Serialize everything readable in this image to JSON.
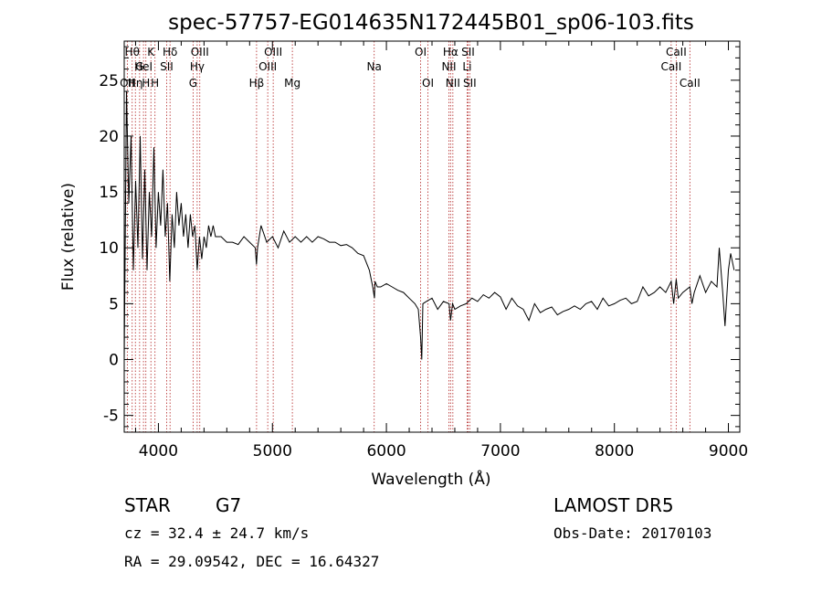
{
  "chart_data": {
    "type": "line",
    "title": "spec-57757-EG014635N172445B01_sp06-103.fits",
    "xlabel": "Wavelength (Å)",
    "ylabel": "Flux (relative)",
    "xlim": [
      3700,
      9100
    ],
    "ylim": [
      -6.5,
      28.5
    ],
    "xticks": [
      4000,
      5000,
      6000,
      7000,
      8000,
      9000
    ],
    "yticks": [
      -5,
      0,
      5,
      10,
      15,
      20,
      25
    ],
    "grid": false,
    "series": [
      {
        "x": [
          3700,
          3720,
          3740,
          3760,
          3780,
          3800,
          3820,
          3840,
          3860,
          3880,
          3900,
          3920,
          3940,
          3960,
          3980,
          4000,
          4020,
          4040,
          4060,
          4080,
          4100,
          4120,
          4140,
          4160,
          4180,
          4200,
          4220,
          4240,
          4260,
          4280,
          4300,
          4320,
          4340,
          4360,
          4380,
          4400,
          4420,
          4440,
          4460,
          4480,
          4500,
          4550,
          4600,
          4650,
          4700,
          4750,
          4800,
          4850,
          4860,
          4870,
          4900,
          4950,
          5000,
          5050,
          5100,
          5150,
          5200,
          5250,
          5300,
          5350,
          5400,
          5450,
          5500,
          5550,
          5600,
          5650,
          5700,
          5750,
          5800,
          5850,
          5880,
          5895,
          5900,
          5920,
          5950,
          6000,
          6050,
          6100,
          6150,
          6200,
          6250,
          6280,
          6300,
          6310,
          6320,
          6350,
          6400,
          6450,
          6500,
          6550,
          6563,
          6580,
          6600,
          6650,
          6700,
          6750,
          6800,
          6850,
          6900,
          6950,
          7000,
          7050,
          7100,
          7150,
          7200,
          7250,
          7300,
          7350,
          7400,
          7450,
          7500,
          7550,
          7600,
          7650,
          7700,
          7750,
          7800,
          7850,
          7900,
          7950,
          8000,
          8050,
          8100,
          8150,
          8200,
          8250,
          8300,
          8350,
          8400,
          8450,
          8498,
          8520,
          8542,
          8560,
          8600,
          8662,
          8680,
          8700,
          8750,
          8800,
          8850,
          8900,
          8920,
          8950,
          8970,
          9000,
          9020,
          9050
        ],
        "y": [
          0,
          24,
          14,
          20,
          8,
          16,
          10,
          20,
          9,
          17,
          8,
          15,
          11,
          19,
          10,
          15,
          12,
          17,
          11,
          14,
          7,
          13,
          10,
          15,
          12,
          14,
          11,
          13,
          10,
          13,
          11,
          12,
          8,
          11,
          9,
          11,
          10,
          12,
          11,
          12,
          11,
          11,
          10.5,
          10.5,
          10.3,
          11,
          10.5,
          10,
          8.5,
          10,
          12,
          10.5,
          11,
          10,
          11.5,
          10.5,
          11,
          10.5,
          11,
          10.5,
          11,
          10.8,
          10.5,
          10.5,
          10.2,
          10.3,
          10,
          9.5,
          9.3,
          8,
          6.5,
          5.5,
          7,
          6.5,
          6.5,
          6.8,
          6.5,
          6.2,
          6,
          5.5,
          5,
          4.5,
          2,
          0,
          5,
          5.2,
          5.5,
          4.5,
          5.2,
          5,
          3.5,
          5,
          4.5,
          4.8,
          5,
          5.5,
          5.2,
          5.8,
          5.5,
          6,
          5.6,
          4.5,
          5.5,
          4.8,
          4.5,
          3.5,
          5,
          4.2,
          4.5,
          4.7,
          4,
          4.3,
          4.5,
          4.8,
          4.5,
          5,
          5.2,
          4.5,
          5.5,
          4.8,
          5,
          5.3,
          5.5,
          5,
          5.2,
          6.5,
          5.7,
          6,
          6.5,
          6,
          7,
          5,
          7.2,
          5.5,
          6,
          6.5,
          5,
          6,
          7.5,
          6,
          7,
          6.5,
          10,
          6,
          3,
          8,
          9.5,
          8
        ]
      }
    ],
    "line_markers": [
      {
        "wavelength": 3727,
        "label": "OII",
        "row": 3
      },
      {
        "wavelength": 3770,
        "label": "Hθ",
        "row": 1
      },
      {
        "wavelength": 3798,
        "label": "Hη",
        "row": 3
      },
      {
        "wavelength": 3835,
        "label": "G",
        "row": 2
      },
      {
        "wavelength": 3869,
        "label": "HeI",
        "row": 2
      },
      {
        "wavelength": 3890,
        "label": "H",
        "row": 3
      },
      {
        "wavelength": 3934,
        "label": "K",
        "row": 1
      },
      {
        "wavelength": 3970,
        "label": "H",
        "row": 3
      },
      {
        "wavelength": 4072,
        "label": "SII",
        "row": 2
      },
      {
        "wavelength": 4102,
        "label": "Hδ",
        "row": 1
      },
      {
        "wavelength": 4304,
        "label": "G",
        "row": 3
      },
      {
        "wavelength": 4340,
        "label": "Hγ",
        "row": 2
      },
      {
        "wavelength": 4363,
        "label": "OIII",
        "row": 1
      },
      {
        "wavelength": 4861,
        "label": "Hβ",
        "row": 3
      },
      {
        "wavelength": 4959,
        "label": "OIII",
        "row": 2
      },
      {
        "wavelength": 5007,
        "label": "OIII",
        "row": 1
      },
      {
        "wavelength": 5175,
        "label": "Mg",
        "row": 3
      },
      {
        "wavelength": 5893,
        "label": "Na",
        "row": 2
      },
      {
        "wavelength": 6300,
        "label": "OI",
        "row": 1
      },
      {
        "wavelength": 6364,
        "label": "OI",
        "row": 3
      },
      {
        "wavelength": 6548,
        "label": "NII",
        "row": 2
      },
      {
        "wavelength": 6563,
        "label": "Hα",
        "row": 1
      },
      {
        "wavelength": 6583,
        "label": "NII",
        "row": 3
      },
      {
        "wavelength": 6708,
        "label": "Li",
        "row": 2
      },
      {
        "wavelength": 6716,
        "label": "SII",
        "row": 1
      },
      {
        "wavelength": 6731,
        "label": "SII",
        "row": 3
      },
      {
        "wavelength": 8498,
        "label": "CaII",
        "row": 2
      },
      {
        "wavelength": 8542,
        "label": "CaII",
        "row": 1
      },
      {
        "wavelength": 8662,
        "label": "CaII",
        "row": 3
      }
    ],
    "colors": {
      "spectrum": "#000000",
      "markers": "#b22222",
      "axes": "#000000"
    }
  },
  "info": {
    "object_class": "STAR",
    "subclass": "G7",
    "survey": "LAMOST DR5",
    "redshift": "cz = 32.4 ± 24.7 km/s",
    "obs_date": "Obs-Date: 20170103",
    "coords": "RA =  29.09542, DEC =  16.64327"
  }
}
